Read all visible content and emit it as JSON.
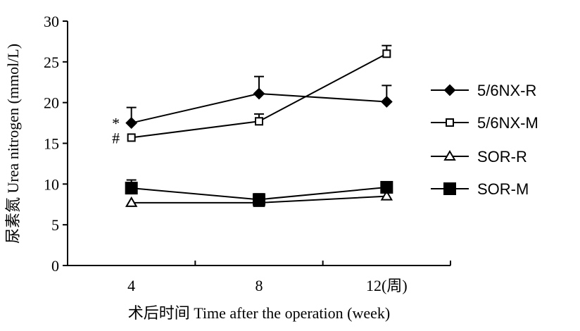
{
  "chart_data": {
    "type": "line",
    "x": [
      4,
      8,
      12
    ],
    "x_tick_labels": [
      "4",
      "8",
      "12(周)"
    ],
    "xlabel": "术后时间 Time after the operation (week)",
    "ylabel": "尿素氮 Urea nitrogen (mmol/L)",
    "ylim": [
      0,
      30
    ],
    "y_ticks": [
      0,
      5,
      10,
      15,
      20,
      25,
      30
    ],
    "grid": false,
    "legend_position": "right",
    "series": [
      {
        "name": "5/6NX-R",
        "marker": "filled-diamond",
        "values": [
          17.5,
          21.1,
          20.1
        ],
        "errors": [
          1.9,
          2.1,
          2.0
        ]
      },
      {
        "name": "5/6NX-M",
        "marker": "open-square",
        "values": [
          15.7,
          17.7,
          26.0
        ],
        "errors": [
          0,
          0.9,
          1.0
        ]
      },
      {
        "name": "SOR-R",
        "marker": "open-triangle",
        "values": [
          7.7,
          7.7,
          8.5
        ],
        "errors": [
          0,
          0,
          0
        ]
      },
      {
        "name": "SOR-M",
        "marker": "filled-square",
        "values": [
          9.5,
          8.1,
          9.6
        ],
        "errors": [
          1.0,
          0.7,
          0
        ]
      }
    ],
    "annotations": [
      {
        "text": "*",
        "x": 4,
        "y": 17.5
      },
      {
        "text": "#",
        "x": 4,
        "y": 15.7
      }
    ]
  }
}
